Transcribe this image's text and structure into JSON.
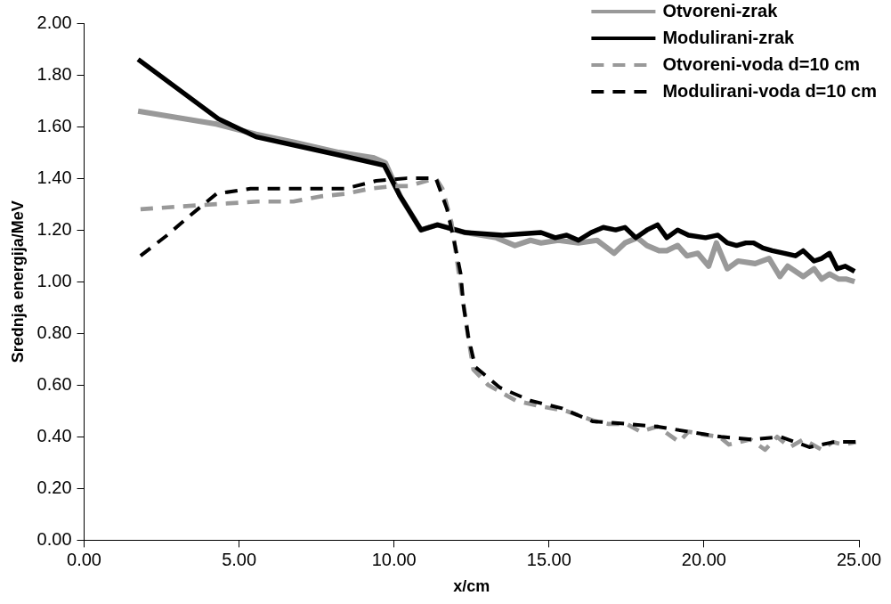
{
  "chart_data": {
    "type": "line",
    "xlabel": "x/cm",
    "ylabel": "Srednja energija/MeV",
    "xlim": [
      0,
      25
    ],
    "xticks": [
      {
        "value": 0,
        "label": "0.00"
      },
      {
        "value": 5,
        "label": "5.00"
      },
      {
        "value": 10,
        "label": "10.00"
      },
      {
        "value": 15,
        "label": "15.00"
      },
      {
        "value": 20,
        "label": "20.00"
      },
      {
        "value": 25,
        "label": "25.00"
      }
    ],
    "ylim": [
      0,
      2
    ],
    "yticks": [
      {
        "value": 0,
        "label": "0.00"
      },
      {
        "value": 0.2,
        "label": "0.20"
      },
      {
        "value": 0.4,
        "label": "0.40"
      },
      {
        "value": 0.6,
        "label": "0.60"
      },
      {
        "value": 0.8,
        "label": "0.80"
      },
      {
        "value": 1,
        "label": "1.00"
      },
      {
        "value": 1.2,
        "label": "1.20"
      },
      {
        "value": 1.4,
        "label": "1.40"
      },
      {
        "value": 1.6,
        "label": "1.60"
      },
      {
        "value": 1.8,
        "label": "1.80"
      },
      {
        "value": 2,
        "label": "2.00"
      }
    ],
    "grid": false,
    "legend": "top right",
    "marker": "none",
    "series": [
      {
        "name": "Otvoreni-zrak",
        "color": "#999999",
        "line_style": "solid",
        "x": [
          1.74,
          4.27,
          5.55,
          6.75,
          8.22,
          9.32,
          9.72,
          10.2,
          10.87,
          11.4,
          12.0,
          12.3,
          13.3,
          13.9,
          14.4,
          14.74,
          15.3,
          15.95,
          16.55,
          17.1,
          17.45,
          17.85,
          18.16,
          18.55,
          18.8,
          19.15,
          19.45,
          19.8,
          20.15,
          20.4,
          20.75,
          21.1,
          21.65,
          22.1,
          22.45,
          22.7,
          23.2,
          23.55,
          23.8,
          24.05,
          24.35,
          24.6,
          24.86
        ],
        "values": [
          1.66,
          1.61,
          1.57,
          1.54,
          1.5,
          1.48,
          1.46,
          1.33,
          1.2,
          1.22,
          1.2,
          1.19,
          1.17,
          1.14,
          1.16,
          1.15,
          1.16,
          1.15,
          1.16,
          1.11,
          1.15,
          1.17,
          1.14,
          1.12,
          1.12,
          1.14,
          1.1,
          1.11,
          1.06,
          1.15,
          1.05,
          1.08,
          1.07,
          1.09,
          1.02,
          1.06,
          1.02,
          1.05,
          1.01,
          1.03,
          1.01,
          1.01,
          1.0
        ]
      },
      {
        "name": "Modulirani-zrak",
        "color": "#000000",
        "line_style": "solid",
        "x": [
          1.74,
          4.33,
          5.55,
          8.22,
          9.68,
          10.2,
          10.87,
          11.4,
          12.0,
          12.3,
          13.5,
          14.74,
          15.2,
          15.57,
          15.95,
          16.36,
          16.75,
          17.15,
          17.45,
          17.8,
          18.16,
          18.5,
          18.8,
          19.15,
          19.5,
          20.05,
          20.45,
          20.75,
          21.05,
          21.35,
          21.6,
          21.9,
          22.2,
          22.6,
          22.95,
          23.2,
          23.55,
          23.8,
          24.05,
          24.3,
          24.56,
          24.86
        ],
        "values": [
          1.86,
          1.63,
          1.56,
          1.49,
          1.45,
          1.33,
          1.2,
          1.22,
          1.2,
          1.19,
          1.18,
          1.19,
          1.17,
          1.18,
          1.16,
          1.19,
          1.21,
          1.2,
          1.21,
          1.17,
          1.2,
          1.22,
          1.17,
          1.2,
          1.18,
          1.17,
          1.18,
          1.15,
          1.14,
          1.15,
          1.15,
          1.13,
          1.12,
          1.11,
          1.1,
          1.12,
          1.08,
          1.09,
          1.11,
          1.05,
          1.06,
          1.04
        ]
      },
      {
        "name": "Otvoreni-voda d=10 cm",
        "color": "#999999",
        "line_style": "dashed",
        "x": [
          1.82,
          2.98,
          4.27,
          5.6,
          6.75,
          7.63,
          8.43,
          9.24,
          10.0,
          10.45,
          11.05,
          11.35,
          11.56,
          11.85,
          12.24,
          12.39,
          12.56,
          13.04,
          13.93,
          14.64,
          15.55,
          16.5,
          16.9,
          17.5,
          17.95,
          18.5,
          19.2,
          19.5,
          19.9,
          20.5,
          20.8,
          21.5,
          21.97,
          22.36,
          22.77,
          23.2,
          23.8,
          24.15,
          24.5,
          24.9
        ],
        "values": [
          1.28,
          1.29,
          1.3,
          1.31,
          1.31,
          1.33,
          1.34,
          1.36,
          1.37,
          1.37,
          1.39,
          1.4,
          1.36,
          1.23,
          0.91,
          0.79,
          0.66,
          0.6,
          0.54,
          0.52,
          0.5,
          0.46,
          0.45,
          0.45,
          0.42,
          0.44,
          0.38,
          0.42,
          0.41,
          0.4,
          0.37,
          0.39,
          0.35,
          0.4,
          0.36,
          0.39,
          0.35,
          0.38,
          0.37,
          0.38
        ]
      },
      {
        "name": "Modulirani-voda d=10 cm",
        "color": "#000000",
        "line_style": "dashed",
        "x": [
          1.82,
          2.68,
          3.46,
          4.27,
          5.37,
          6.35,
          7.39,
          8.43,
          9.42,
          10.4,
          11.35,
          11.71,
          11.95,
          12.15,
          12.24,
          12.39,
          12.62,
          13.42,
          14.4,
          15.42,
          16.4,
          17.5,
          18.46,
          19.5,
          20.55,
          21.55,
          22.47,
          23.4,
          24.2,
          24.9
        ],
        "values": [
          1.1,
          1.18,
          1.26,
          1.34,
          1.36,
          1.36,
          1.36,
          1.36,
          1.39,
          1.4,
          1.4,
          1.28,
          1.15,
          1.03,
          0.91,
          0.79,
          0.67,
          0.59,
          0.54,
          0.51,
          0.46,
          0.45,
          0.44,
          0.42,
          0.4,
          0.39,
          0.4,
          0.36,
          0.38,
          0.38
        ]
      }
    ]
  }
}
